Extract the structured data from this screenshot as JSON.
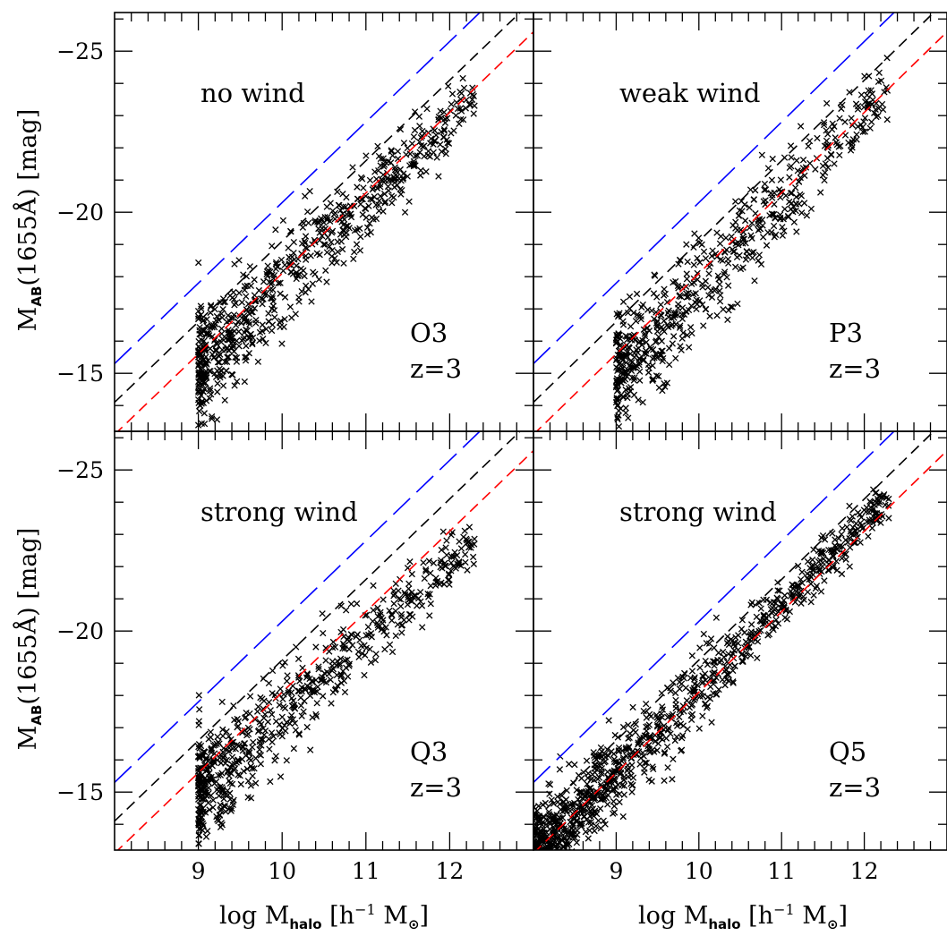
{
  "colors": {
    "blue_line": "#0000ff",
    "black_line": "#000000",
    "red_line": "#ff0000",
    "points": "#000000"
  },
  "axes": {
    "xlabel_prefix": "log M",
    "xlabel_sub": "halo",
    "xlabel_mid": " [h",
    "xlabel_sup": "−1",
    "xlabel_units": " M",
    "xlabel_end": "]",
    "ylabel_prefix": "M",
    "ylabel_sub": "AB",
    "ylabel_rest": "(1655Å) [mag]",
    "x_tick_labels": [
      "9",
      "10",
      "11",
      "12"
    ],
    "y_tick_labels": [
      "−25",
      "−20",
      "−15"
    ]
  },
  "chart_data": [
    {
      "type": "scatter",
      "panel": "top-left",
      "title": "no wind",
      "model": "O3",
      "redshift": "z=3",
      "xlim": [
        8.0,
        13.0
      ],
      "ylim": [
        -13.2,
        -26.2
      ],
      "grid": false,
      "cloud": {
        "x_range": [
          9.0,
          12.3
        ],
        "mag_at_min": -15.3,
        "slope": -2.5,
        "scatter": 0.9,
        "n": 700
      },
      "lines": [
        {
          "color": "blue",
          "style": "long-dash",
          "intercept_at_9": -17.8,
          "slope": -2.5
        },
        {
          "color": "black",
          "style": "dash",
          "intercept_at_9": -16.6,
          "slope": -2.5
        },
        {
          "color": "red",
          "style": "dash",
          "intercept_at_9": -15.6,
          "slope": -2.5
        }
      ]
    },
    {
      "type": "scatter",
      "panel": "top-right",
      "title": "weak wind",
      "model": "P3",
      "redshift": "z=3",
      "xlim": [
        8.0,
        13.0
      ],
      "ylim": [
        -13.2,
        -26.2
      ],
      "grid": false,
      "cloud": {
        "x_range": [
          9.0,
          12.3
        ],
        "mag_at_min": -15.0,
        "slope": -2.7,
        "scatter": 1.0,
        "n": 600
      },
      "lines": [
        {
          "color": "blue",
          "style": "long-dash",
          "intercept_at_9": -17.8,
          "slope": -2.5
        },
        {
          "color": "black",
          "style": "dash",
          "intercept_at_9": -16.6,
          "slope": -2.5
        },
        {
          "color": "red",
          "style": "dash",
          "intercept_at_9": -15.6,
          "slope": -2.5
        }
      ]
    },
    {
      "type": "scatter",
      "panel": "bottom-left",
      "title": "strong wind",
      "model": "Q3",
      "redshift": "z=3",
      "xlim": [
        8.0,
        13.0
      ],
      "ylim": [
        -13.2,
        -26.2
      ],
      "grid": false,
      "cloud": {
        "x_range": [
          9.0,
          12.3
        ],
        "mag_at_min": -15.0,
        "slope": -2.4,
        "scatter": 0.9,
        "n": 650
      },
      "lines": [
        {
          "color": "blue",
          "style": "long-dash",
          "intercept_at_9": -17.8,
          "slope": -2.5
        },
        {
          "color": "black",
          "style": "dash",
          "intercept_at_9": -16.6,
          "slope": -2.5
        },
        {
          "color": "red",
          "style": "dash",
          "intercept_at_9": -15.6,
          "slope": -2.5
        }
      ]
    },
    {
      "type": "scatter",
      "panel": "bottom-right",
      "title": "strong wind",
      "model": "Q5",
      "redshift": "z=3",
      "xlim": [
        8.0,
        13.0
      ],
      "ylim": [
        -13.2,
        -26.2
      ],
      "grid": false,
      "cloud": {
        "x_range": [
          8.0,
          12.3
        ],
        "mag_at_min": -13.0,
        "slope": -2.6,
        "scatter": 0.7,
        "n": 1100
      },
      "lines": [
        {
          "color": "blue",
          "style": "long-dash",
          "intercept_at_9": -17.8,
          "slope": -2.5
        },
        {
          "color": "black",
          "style": "dash",
          "intercept_at_9": -16.6,
          "slope": -2.5
        },
        {
          "color": "red",
          "style": "dash",
          "intercept_at_9": -15.6,
          "slope": -2.5
        }
      ]
    }
  ]
}
